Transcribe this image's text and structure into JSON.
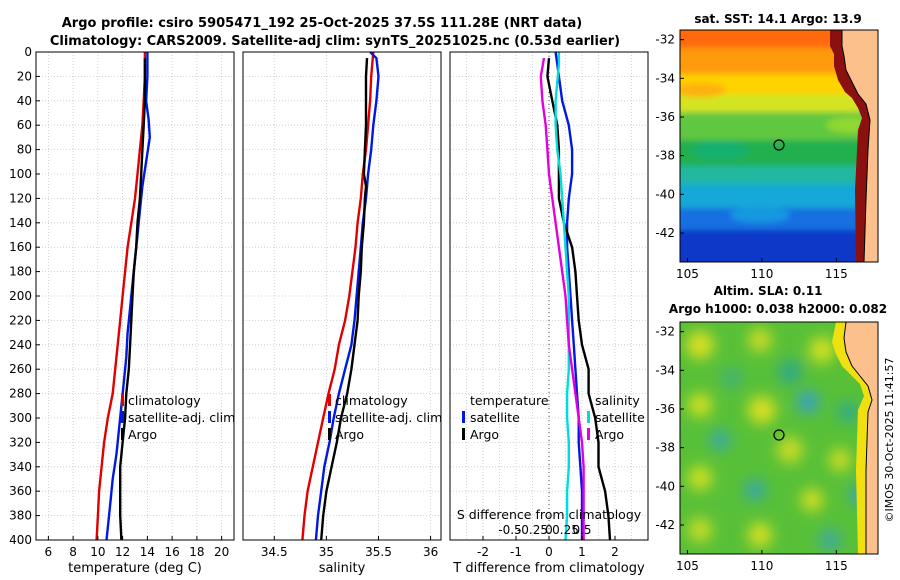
{
  "header": {
    "title_line1": "Argo profile: csiro 5905471_192 25-Oct-2025 37.5S 111.28E (NRT data)",
    "title_line2": "Climatology: CARS2009. Satellite-adj clim: synTS_20251025.nc (0.53d earlier)"
  },
  "footer": {
    "credit": "©IMOS 30-Oct-2025 11:41:57"
  },
  "colors": {
    "climatology": "#e00000",
    "satellite": "#0018e0",
    "argo": "#000000",
    "s_satellite": "#00dcdc",
    "s_argo": "#e000e0",
    "grid": "#c8c8c8"
  },
  "chart_data": [
    {
      "id": "temperature",
      "type": "line",
      "xlabel": "temperature (deg C)",
      "ylabel": "",
      "xlim": [
        5,
        21
      ],
      "ylim": [
        0,
        400
      ],
      "xticks": [
        6,
        8,
        10,
        12,
        14,
        16,
        18,
        20
      ],
      "yticks": [
        0,
        20,
        40,
        60,
        80,
        100,
        120,
        140,
        160,
        180,
        200,
        220,
        240,
        260,
        280,
        300,
        320,
        340,
        360,
        380,
        400
      ],
      "legend": [
        "climatology",
        "satellite-adj. clim",
        "Argo"
      ],
      "legend_position": "lower-right",
      "series": [
        {
          "name": "climatology",
          "color": "#e00000",
          "points": [
            [
              13.8,
              0
            ],
            [
              13.8,
              20
            ],
            [
              13.7,
              40
            ],
            [
              13.6,
              60
            ],
            [
              13.4,
              80
            ],
            [
              13.2,
              100
            ],
            [
              13.0,
              120
            ],
            [
              12.7,
              140
            ],
            [
              12.4,
              160
            ],
            [
              12.2,
              180
            ],
            [
              12.0,
              200
            ],
            [
              11.8,
              220
            ],
            [
              11.6,
              240
            ],
            [
              11.4,
              260
            ],
            [
              11.2,
              280
            ],
            [
              10.8,
              300
            ],
            [
              10.5,
              320
            ],
            [
              10.3,
              340
            ],
            [
              10.1,
              360
            ],
            [
              10.0,
              380
            ],
            [
              9.9,
              400
            ]
          ]
        },
        {
          "name": "satellite-adj. clim",
          "color": "#0018e0",
          "points": [
            [
              14.0,
              0
            ],
            [
              14.0,
              20
            ],
            [
              13.9,
              40
            ],
            [
              14.1,
              55
            ],
            [
              14.2,
              70
            ],
            [
              13.9,
              90
            ],
            [
              13.6,
              110
            ],
            [
              13.4,
              130
            ],
            [
              13.2,
              150
            ],
            [
              13.0,
              170
            ],
            [
              12.8,
              190
            ],
            [
              12.6,
              210
            ],
            [
              12.4,
              230
            ],
            [
              12.3,
              250
            ],
            [
              12.1,
              270
            ],
            [
              11.9,
              290
            ],
            [
              11.7,
              310
            ],
            [
              11.5,
              330
            ],
            [
              11.2,
              350
            ],
            [
              11.0,
              370
            ],
            [
              10.8,
              390
            ],
            [
              10.7,
              400
            ]
          ]
        },
        {
          "name": "Argo",
          "color": "#000000",
          "points": [
            [
              13.8,
              5
            ],
            [
              13.8,
              20
            ],
            [
              13.8,
              40
            ],
            [
              13.7,
              60
            ],
            [
              13.6,
              80
            ],
            [
              13.5,
              100
            ],
            [
              13.4,
              120
            ],
            [
              13.2,
              140
            ],
            [
              13.1,
              160
            ],
            [
              12.9,
              180
            ],
            [
              12.8,
              200
            ],
            [
              12.7,
              220
            ],
            [
              12.6,
              240
            ],
            [
              12.5,
              260
            ],
            [
              12.3,
              280
            ],
            [
              12.2,
              300
            ],
            [
              12.0,
              320
            ],
            [
              11.8,
              340
            ],
            [
              11.8,
              360
            ],
            [
              11.8,
              380
            ],
            [
              11.9,
              400
            ]
          ]
        }
      ]
    },
    {
      "id": "salinity",
      "type": "line",
      "xlabel": "salinity",
      "ylabel": "",
      "xlim": [
        34.2,
        36.1
      ],
      "ylim": [
        0,
        400
      ],
      "xticks": [
        34.5,
        35,
        35.5,
        36
      ],
      "legend": [
        "climatology",
        "satellite-adj. clim",
        "Argo"
      ],
      "legend_position": "lower-right",
      "series": [
        {
          "name": "climatology",
          "color": "#e00000",
          "points": [
            [
              35.45,
              0
            ],
            [
              35.43,
              20
            ],
            [
              35.42,
              40
            ],
            [
              35.4,
              60
            ],
            [
              35.38,
              80
            ],
            [
              35.35,
              100
            ],
            [
              35.33,
              120
            ],
            [
              35.3,
              140
            ],
            [
              35.28,
              160
            ],
            [
              35.25,
              180
            ],
            [
              35.22,
              200
            ],
            [
              35.18,
              220
            ],
            [
              35.12,
              240
            ],
            [
              35.08,
              260
            ],
            [
              35.02,
              280
            ],
            [
              34.97,
              300
            ],
            [
              34.92,
              320
            ],
            [
              34.87,
              340
            ],
            [
              34.82,
              360
            ],
            [
              34.79,
              380
            ],
            [
              34.77,
              400
            ]
          ]
        },
        {
          "name": "satellite-adj. clim",
          "color": "#0018e0",
          "points": [
            [
              35.42,
              0
            ],
            [
              35.48,
              5
            ],
            [
              35.5,
              20
            ],
            [
              35.48,
              40
            ],
            [
              35.45,
              60
            ],
            [
              35.43,
              80
            ],
            [
              35.4,
              100
            ],
            [
              35.38,
              120
            ],
            [
              35.35,
              140
            ],
            [
              35.33,
              160
            ],
            [
              35.31,
              180
            ],
            [
              35.29,
              200
            ],
            [
              35.27,
              220
            ],
            [
              35.24,
              240
            ],
            [
              35.18,
              260
            ],
            [
              35.12,
              280
            ],
            [
              35.07,
              300
            ],
            [
              35.03,
              320
            ],
            [
              34.98,
              340
            ],
            [
              34.95,
              360
            ],
            [
              34.92,
              380
            ],
            [
              34.9,
              400
            ]
          ]
        },
        {
          "name": "Argo",
          "color": "#000000",
          "points": [
            [
              35.39,
              5
            ],
            [
              35.38,
              20
            ],
            [
              35.38,
              40
            ],
            [
              35.38,
              60
            ],
            [
              35.37,
              80
            ],
            [
              35.36,
              100
            ],
            [
              35.38,
              110
            ],
            [
              35.37,
              120
            ],
            [
              35.36,
              140
            ],
            [
              35.34,
              160
            ],
            [
              35.33,
              180
            ],
            [
              35.31,
              200
            ],
            [
              35.3,
              220
            ],
            [
              35.27,
              240
            ],
            [
              35.24,
              260
            ],
            [
              35.2,
              280
            ],
            [
              35.14,
              300
            ],
            [
              35.1,
              320
            ],
            [
              35.05,
              340
            ],
            [
              35.0,
              360
            ],
            [
              34.97,
              380
            ],
            [
              34.95,
              400
            ]
          ]
        }
      ]
    },
    {
      "id": "difference",
      "type": "line",
      "xlabel": "T difference from climatology",
      "x2label": "S difference from climatology",
      "ylabel": "",
      "xlim": [
        -3,
        3
      ],
      "ylim": [
        0,
        400
      ],
      "xticks": [
        -2,
        -1,
        0,
        1,
        2
      ],
      "x2ticks": [
        "-0.5",
        "-0.25",
        "0",
        "0.25",
        "0.5"
      ],
      "legend": [
        "temperature",
        "satellite",
        "Argo",
        "salinity",
        "satellite",
        "Argo"
      ],
      "legend_position": "lower-center",
      "series": [
        {
          "name": "T satellite",
          "color": "#0018e0",
          "points": [
            [
              0.2,
              0
            ],
            [
              0.25,
              10
            ],
            [
              0.3,
              20
            ],
            [
              0.4,
              40
            ],
            [
              0.6,
              60
            ],
            [
              0.7,
              80
            ],
            [
              0.7,
              100
            ],
            [
              0.6,
              120
            ],
            [
              0.55,
              140
            ],
            [
              0.55,
              160
            ],
            [
              0.6,
              180
            ],
            [
              0.65,
              200
            ],
            [
              0.7,
              220
            ],
            [
              0.75,
              240
            ],
            [
              0.8,
              260
            ],
            [
              0.85,
              280
            ],
            [
              0.9,
              300
            ],
            [
              0.9,
              320
            ],
            [
              0.95,
              340
            ],
            [
              1.0,
              360
            ],
            [
              1.0,
              380
            ],
            [
              1.0,
              400
            ]
          ]
        },
        {
          "name": "T Argo",
          "color": "#000000",
          "points": [
            [
              0.0,
              5
            ],
            [
              -0.05,
              20
            ],
            [
              0.1,
              40
            ],
            [
              0.25,
              60
            ],
            [
              0.3,
              80
            ],
            [
              0.3,
              100
            ],
            [
              0.3,
              120
            ],
            [
              0.45,
              140
            ],
            [
              0.7,
              160
            ],
            [
              0.8,
              180
            ],
            [
              0.85,
              200
            ],
            [
              0.9,
              220
            ],
            [
              1.0,
              240
            ],
            [
              1.2,
              260
            ],
            [
              1.2,
              280
            ],
            [
              1.4,
              300
            ],
            [
              1.5,
              320
            ],
            [
              1.5,
              340
            ],
            [
              1.7,
              360
            ],
            [
              1.8,
              380
            ],
            [
              1.85,
              400
            ]
          ]
        },
        {
          "name": "S satellite",
          "color": "#00dcdc",
          "points": [
            [
              0.3,
              0
            ],
            [
              0.3,
              10
            ],
            [
              0.2,
              40
            ],
            [
              0.2,
              60
            ],
            [
              0.25,
              80
            ],
            [
              0.35,
              100
            ],
            [
              0.4,
              120
            ],
            [
              0.45,
              140
            ],
            [
              0.5,
              160
            ],
            [
              0.55,
              180
            ],
            [
              0.6,
              200
            ],
            [
              0.6,
              220
            ],
            [
              0.6,
              240
            ],
            [
              0.6,
              260
            ],
            [
              0.55,
              280
            ],
            [
              0.55,
              300
            ],
            [
              0.6,
              320
            ],
            [
              0.6,
              340
            ],
            [
              0.55,
              360
            ],
            [
              0.55,
              380
            ],
            [
              0.5,
              400
            ]
          ]
        },
        {
          "name": "S Argo",
          "color": "#e000e0",
          "points": [
            [
              -0.15,
              5
            ],
            [
              -0.25,
              20
            ],
            [
              -0.2,
              40
            ],
            [
              -0.1,
              60
            ],
            [
              -0.05,
              80
            ],
            [
              0.0,
              100
            ],
            [
              0.1,
              120
            ],
            [
              0.2,
              140
            ],
            [
              0.3,
              160
            ],
            [
              0.4,
              180
            ],
            [
              0.5,
              200
            ],
            [
              0.55,
              220
            ],
            [
              0.6,
              240
            ],
            [
              0.7,
              260
            ],
            [
              0.8,
              280
            ],
            [
              0.9,
              300
            ],
            [
              1.0,
              320
            ],
            [
              1.05,
              340
            ],
            [
              1.05,
              360
            ],
            [
              1.05,
              380
            ],
            [
              1.05,
              400
            ]
          ]
        }
      ]
    }
  ],
  "maps": {
    "sst": {
      "title": "sat. SST: 14.1 Argo: 13.9",
      "xticks": [
        "105",
        "110",
        "115"
      ],
      "yticks": [
        "-32",
        "-34",
        "-36",
        "-38",
        "-40",
        "-42"
      ],
      "xlim": [
        104.5,
        117.8
      ],
      "ylim": [
        -43.5,
        -31.5
      ],
      "argo_marker": [
        111.28,
        -37.5
      ]
    },
    "sla": {
      "title_line1": "Altim. SLA: 0.11",
      "title_line2": "Argo h1000: 0.038 h2000: 0.082",
      "xticks": [
        "105",
        "110",
        "115"
      ],
      "yticks": [
        "-32",
        "-34",
        "-36",
        "-38",
        "-40",
        "-42"
      ],
      "xlim": [
        104.5,
        117.8
      ],
      "ylim": [
        -43.5,
        -31.5
      ],
      "argo_marker": [
        111.28,
        -37.5
      ]
    }
  }
}
